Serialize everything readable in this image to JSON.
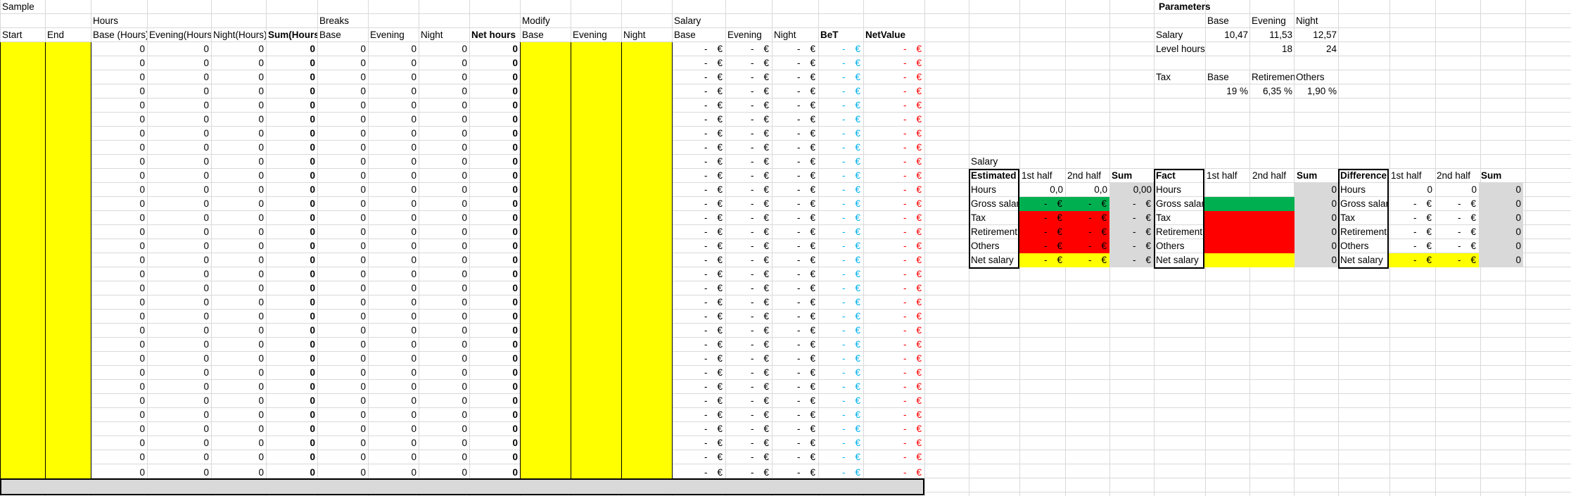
{
  "headers": {
    "sheet_title": "Sample",
    "hours": "Hours",
    "breaks": "Breaks",
    "modify": "Modify",
    "salary": "Salary",
    "columns": [
      "Start",
      "End",
      "Base (Hours)",
      "Evening(Hours)",
      "Night(Hours)",
      "Sum(Hours)",
      "Base",
      "Evening",
      "Night",
      "Net hours",
      "Base",
      "Evening",
      "Night",
      "Base",
      "Evening",
      "Night",
      "BeT",
      "NetValue"
    ]
  },
  "row_values": {
    "zero": "0",
    "dash": "-",
    "euro": "€"
  },
  "row_count": 31,
  "parameters": {
    "title": "Parameters",
    "head": [
      "Base",
      "Evening",
      "Night"
    ],
    "salary_label": "Salary",
    "salary": [
      "10,47",
      "11,53",
      "12,57"
    ],
    "level_label": "Level hours",
    "level": [
      "18",
      "24"
    ],
    "tax_label": "Tax",
    "tax_head": [
      "Base",
      "Retirement",
      "Others"
    ],
    "tax": [
      "19 %",
      "6,35 %",
      "1,90 %"
    ]
  },
  "summary": {
    "title": "Salary",
    "col_heads": [
      "1st half",
      "2nd half",
      "Sum"
    ],
    "estimated": {
      "label": "Estimated",
      "rows": [
        "Hours",
        "Gross salary",
        "Tax",
        "Retirement",
        "Others",
        "Net salary"
      ],
      "hours": [
        "0,0",
        "0,0",
        "0,00"
      ]
    },
    "fact": {
      "label": "Fact",
      "rows": [
        "Hours",
        "Gross salary",
        "Tax",
        "Retirement",
        "Others",
        "Net salary"
      ],
      "sum": "0"
    },
    "difference": {
      "label": "Difference",
      "rows": [
        "Hours",
        "Gross salary",
        "Tax",
        "Retirement",
        "Others",
        "Net salary"
      ],
      "hours": [
        "0",
        "0",
        "0"
      ]
    }
  },
  "colors": {
    "input_yellow": "#ffff00",
    "total_gray": "#d9d9d9",
    "gross_green": "#00b050",
    "deduction_red": "#ff0000",
    "bet_cyan": "#00b0f0"
  }
}
